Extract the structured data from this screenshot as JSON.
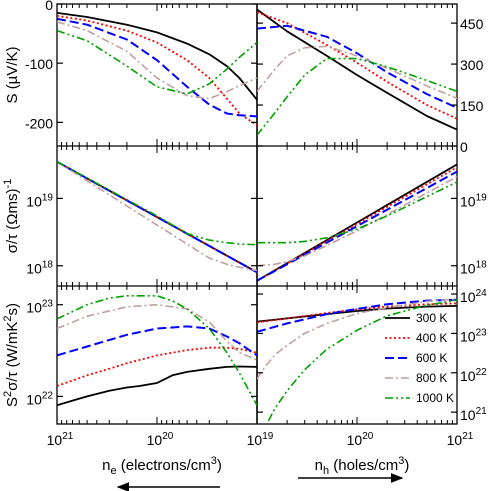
{
  "chart_data": {
    "type": "line",
    "layout": "3 rows x 2 columns of panels sharing axes",
    "legend": {
      "placement": "inside bottom-right panel, right side",
      "entries": [
        {
          "name": "300 K",
          "color": "#000000",
          "dash": "solid"
        },
        {
          "name": "400 K",
          "color": "#ff0000",
          "dash": "dotted"
        },
        {
          "name": "600 K",
          "color": "#0000ff",
          "dash": "dashed"
        },
        {
          "name": "800 K",
          "color": "#c0a0a0",
          "dash": "dash-dot"
        },
        {
          "name": "1000 K",
          "color": "#00a000",
          "dash": "dash-dot-dot"
        }
      ]
    },
    "x_axes": {
      "left": {
        "label_main": "n",
        "label_sub": "e",
        "label_rest": " (electrons/cm",
        "label_sup": "3",
        "label_end": ")",
        "scale": "log",
        "reversed": true,
        "range": [
          1e+21,
          1e+19
        ],
        "ticks": [
          {
            "base": "10",
            "exp": "21"
          },
          {
            "base": "10",
            "exp": "20"
          },
          {
            "base": "10",
            "exp": "19"
          }
        ],
        "arrow": "left"
      },
      "right": {
        "label_main": "n",
        "label_sub": "h",
        "label_rest": " (holes/cm",
        "label_sup": "3",
        "label_end": ")",
        "scale": "log",
        "reversed": false,
        "range": [
          1e+19,
          1e+21
        ],
        "ticks": [
          {
            "base": "10",
            "exp": "20"
          },
          {
            "base": "10",
            "exp": "21"
          }
        ],
        "arrow": "right"
      }
    },
    "panels": [
      {
        "id": "S",
        "ylabel": "S (µV/K)",
        "left": {
          "scale": "linear",
          "ylim": [
            -240,
            0
          ],
          "ticks": [
            "0",
            "-100",
            "-200"
          ],
          "tick_values": [
            0,
            -100,
            -200
          ],
          "series": [
            {
              "name": "300 K",
              "x": [
                1e+21,
                5e+20,
                2e+20,
                1e+20,
                5e+19,
                3e+19,
                2e+19,
                1.5e+19,
                1e+19
              ],
              "y": [
                -15,
                -22,
                -35,
                -48,
                -67,
                -85,
                -105,
                -125,
                -162
              ]
            },
            {
              "name": "400 K",
              "x": [
                1e+21,
                5e+20,
                2e+20,
                1e+20,
                5e+19,
                3e+19,
                2e+19,
                1.5e+19,
                1e+19
              ],
              "y": [
                -20,
                -28,
                -45,
                -65,
                -95,
                -125,
                -160,
                -185,
                -205
              ]
            },
            {
              "name": "600 K",
              "x": [
                1e+21,
                5e+20,
                2e+20,
                1e+20,
                5e+19,
                3e+19,
                2e+19,
                1.5e+19,
                1e+19
              ],
              "y": [
                -25,
                -35,
                -60,
                -95,
                -140,
                -170,
                -185,
                -188,
                -190
              ]
            },
            {
              "name": "800 K",
              "x": [
                1e+21,
                5e+20,
                2e+20,
                1e+20,
                5e+19,
                3e+19,
                2e+19,
                1.5e+19,
                1e+19
              ],
              "y": [
                -30,
                -45,
                -80,
                -125,
                -155,
                -160,
                -148,
                -138,
                -125
              ]
            },
            {
              "name": "1000 K",
              "x": [
                1e+21,
                5e+20,
                2e+20,
                1e+20,
                5e+19,
                3e+19,
                2e+19,
                1.5e+19,
                1e+19
              ],
              "y": [
                -45,
                -62,
                -105,
                -140,
                -152,
                -135,
                -110,
                -90,
                -65
              ]
            }
          ]
        },
        "right": {
          "scale": "linear",
          "ylim": [
            0,
            520
          ],
          "ticks": [
            "0",
            "150",
            "300",
            "450"
          ],
          "tick_values": [
            0,
            150,
            300,
            450
          ],
          "series": [
            {
              "name": "300 K",
              "x": [
                1e+19,
                2e+19,
                5e+19,
                1e+20,
                2e+20,
                5e+20,
                1e+21
              ],
              "y": [
                500,
                420,
                330,
                260,
                195,
                110,
                60
              ]
            },
            {
              "name": "400 K",
              "x": [
                1e+19,
                2e+19,
                5e+19,
                1e+20,
                2e+20,
                5e+20,
                1e+21
              ],
              "y": [
                490,
                450,
                370,
                305,
                235,
                150,
                100
              ]
            },
            {
              "name": "600 K",
              "x": [
                1e+19,
                2e+19,
                5e+19,
                1e+20,
                2e+20,
                5e+20,
                1e+21
              ],
              "y": [
                430,
                440,
                400,
                340,
                270,
                190,
                140
              ]
            },
            {
              "name": "800 K",
              "x": [
                1e+19,
                1.5e+19,
                2e+19,
                3e+19,
                5e+19,
                1e+20,
                2e+20,
                5e+20,
                1e+21
              ],
              "y": [
                200,
                280,
                330,
                360,
                365,
                330,
                285,
                220,
                175
              ]
            },
            {
              "name": "1000 K",
              "x": [
                1e+19,
                1.5e+19,
                2e+19,
                3e+19,
                5e+19,
                1e+20,
                2e+20,
                5e+20,
                1e+21
              ],
              "y": [
                40,
                120,
                180,
                260,
                320,
                320,
                290,
                240,
                200
              ]
            }
          ]
        }
      },
      {
        "id": "sigma",
        "ylabel": "σ/τ (Ωms)",
        "ylabel_sup": "-1",
        "left": {
          "scale": "log",
          "ylim": [
            5e+17,
            6e+19
          ],
          "ticks": [
            {
              "base": "10",
              "exp": "19"
            },
            {
              "base": "10",
              "exp": "18"
            }
          ],
          "tick_values": [
            1e+19,
            1e+18
          ],
          "series": [
            {
              "name": "300 K",
              "x": [
                1e+21,
                1e+19
              ],
              "y": [
                3.5e+19,
                8e+17
              ]
            },
            {
              "name": "400 K",
              "x": [
                1e+21,
                1e+19
              ],
              "y": [
                3.5e+19,
                8e+17
              ]
            },
            {
              "name": "600 K",
              "x": [
                1e+21,
                1e+19
              ],
              "y": [
                3.5e+19,
                8e+17
              ]
            },
            {
              "name": "800 K",
              "x": [
                1e+21,
                3e+19,
                2e+19,
                1.5e+19,
                1e+19
              ],
              "y": [
                3.5e+19,
                1.3e+18,
                1.05e+18,
                9.5e+17,
                8.5e+17
              ]
            },
            {
              "name": "1000 K",
              "x": [
                1e+21,
                1e+20,
                5e+19,
                3e+19,
                2e+19,
                1.5e+19,
                1e+19
              ],
              "y": [
                3.5e+19,
                5.5e+18,
                3e+18,
                2.4e+18,
                2.2e+18,
                2.1e+18,
                2.05e+18
              ]
            }
          ]
        },
        "right": {
          "scale": "log",
          "ylim": [
            5e+17,
            6e+19
          ],
          "ticks": [
            {
              "base": "10",
              "exp": "19"
            },
            {
              "base": "10",
              "exp": "18"
            }
          ],
          "tick_values": [
            1e+19,
            1e+18
          ],
          "series": [
            {
              "name": "300 K",
              "x": [
                1e+19,
                1e+21
              ],
              "y": [
                6e+17,
                3.2e+19
              ]
            },
            {
              "name": "400 K",
              "x": [
                1e+19,
                1e+21
              ],
              "y": [
                6e+17,
                2.9e+19
              ]
            },
            {
              "name": "600 K",
              "x": [
                1e+19,
                1e+21
              ],
              "y": [
                6e+17,
                2.5e+19
              ]
            },
            {
              "name": "800 K",
              "x": [
                1e+19,
                1.5e+19,
                2e+19,
                3e+19,
                5e+19,
                1e+20,
                1e+21
              ],
              "y": [
                1e+18,
                1.05e+18,
                1.15e+18,
                1.4e+18,
                2e+18,
                3.3e+18,
                2.1e+19
              ]
            },
            {
              "name": "1000 K",
              "x": [
                1e+19,
                2e+19,
                3e+19,
                5e+19,
                1e+20,
                2e+20,
                1e+21
              ],
              "y": [
                2.2e+18,
                2.2e+18,
                2.3e+18,
                2.6e+18,
                3.5e+18,
                5.5e+18,
                1.75e+19
              ]
            }
          ]
        }
      },
      {
        "id": "PF",
        "ylabel": "S",
        "ylabel_sup": "2",
        "ylabel_rest": "σ/τ (W/mK",
        "ylabel_sup2": "2",
        "ylabel_end": "s)",
        "left": {
          "scale": "log",
          "ylim": [
            5e+21,
            1.6e+23
          ],
          "ticks": [
            {
              "base": "10",
              "exp": "23"
            },
            {
              "base": "10",
              "exp": "22"
            }
          ],
          "tick_values": [
            1e+23,
            1e+22
          ],
          "series": [
            {
              "name": "300 K",
              "x": [
                1e+21,
                7e+20,
                5e+20,
                3e+20,
                2e+20,
                1.5e+20,
                1e+20,
                7e+19,
                5e+19,
                3e+19,
                2e+19,
                1.5e+19,
                1e+19
              ],
              "y": [
                8e+21,
                9e+21,
                1e+22,
                1.15e+22,
                1.25e+22,
                1.3e+22,
                1.4e+22,
                1.7e+22,
                1.85e+22,
                2e+22,
                2.1e+22,
                2.12e+22,
                2.1e+22
              ]
            },
            {
              "name": "400 K",
              "x": [
                1e+21,
                5e+20,
                3e+20,
                2e+20,
                1e+20,
                5e+19,
                3e+19,
                2e+19,
                1.5e+19,
                1e+19
              ],
              "y": [
                1.3e+22,
                1.7e+22,
                2e+22,
                2.3e+22,
                2.8e+22,
                3.2e+22,
                3.4e+22,
                3.4e+22,
                3.3e+22,
                3e+22
              ]
            },
            {
              "name": "600 K",
              "x": [
                1e+21,
                5e+20,
                2e+20,
                1e+20,
                5e+19,
                3e+19,
                2e+19,
                1.5e+19,
                1e+19
              ],
              "y": [
                2.8e+22,
                3.5e+22,
                4.7e+22,
                5.5e+22,
                5.8e+22,
                5.5e+22,
                4.5e+22,
                3.8e+22,
                2.8e+22
              ]
            },
            {
              "name": "800 K",
              "x": [
                1e+21,
                5e+20,
                2e+20,
                1e+20,
                5e+19,
                3e+19,
                2e+19,
                1.5e+19,
                1e+19
              ],
              "y": [
                5.5e+22,
                7.5e+22,
                9.5e+22,
                1e+23,
                9e+22,
                6.5e+22,
                4e+22,
                3e+22,
                2.5e+22
              ]
            },
            {
              "name": "1000 K",
              "x": [
                1e+21,
                5e+20,
                3e+20,
                2e+20,
                1e+20,
                7e+19,
                5e+19,
                3e+19,
                2e+19,
                1.5e+19,
                1e+19
              ],
              "y": [
                7e+22,
                1e+23,
                1.18e+23,
                1.25e+23,
                1.25e+23,
                1.1e+23,
                9e+22,
                5.5e+22,
                3e+22,
                1.8e+22,
                8e+21
              ]
            }
          ]
        },
        "right": {
          "scale": "log",
          "ylim": [
            5e+20,
            1.6e+24
          ],
          "ticks": [
            {
              "base": "10",
              "exp": "24"
            },
            {
              "base": "10",
              "exp": "23"
            },
            {
              "base": "10",
              "exp": "22"
            },
            {
              "base": "10",
              "exp": "21"
            }
          ],
          "tick_values": [
            1e+24,
            1e+23,
            1e+22,
            1e+21
          ],
          "series": [
            {
              "name": "300 K",
              "x": [
                1e+19,
                2e+19,
                5e+19,
                1e+20,
                2e+20,
                5e+20,
                1e+21
              ],
              "y": [
                2e+23,
                2.4e+23,
                3.1e+23,
                3.7e+23,
                4.3e+23,
                4.8e+23,
                5e+23
              ]
            },
            {
              "name": "400 K",
              "x": [
                1e+19,
                2e+19,
                5e+19,
                1e+20,
                2e+20,
                5e+20,
                1e+21
              ],
              "y": [
                1.9e+23,
                2.4e+23,
                3.3e+23,
                4.1e+23,
                4.8e+23,
                5.5e+23,
                5.8e+23
              ]
            },
            {
              "name": "600 K",
              "x": [
                1e+19,
                2e+19,
                5e+19,
                1e+20,
                2e+20,
                5e+20,
                1e+21
              ],
              "y": [
                1.1e+23,
                1.8e+23,
                3.1e+23,
                4.2e+23,
                5.5e+23,
                6.8e+23,
                7.2e+23
              ]
            },
            {
              "name": "800 K",
              "x": [
                1e+19,
                1.2e+19,
                1.5e+19,
                2e+19,
                3e+19,
                5e+19,
                1e+20,
                2e+20,
                5e+20,
                1e+21
              ],
              "y": [
                7e+21,
                1.4e+22,
                2.8e+22,
                5e+22,
                1e+23,
                1.8e+23,
                3.2e+23,
                4.5e+23,
                6.5e+23,
                7.5e+23
              ]
            },
            {
              "name": "1000 K",
              "x": [
                1.3e+19,
                1.5e+19,
                2e+19,
                3e+19,
                5e+19,
                1e+20,
                2e+20,
                5e+20,
                1e+21
              ],
              "y": [
                6e+20,
                1.2e+21,
                3.5e+21,
                1.2e+22,
                4e+22,
                1.2e+23,
                2.8e+23,
                5.2e+23,
                7e+23
              ]
            }
          ]
        }
      }
    ]
  }
}
